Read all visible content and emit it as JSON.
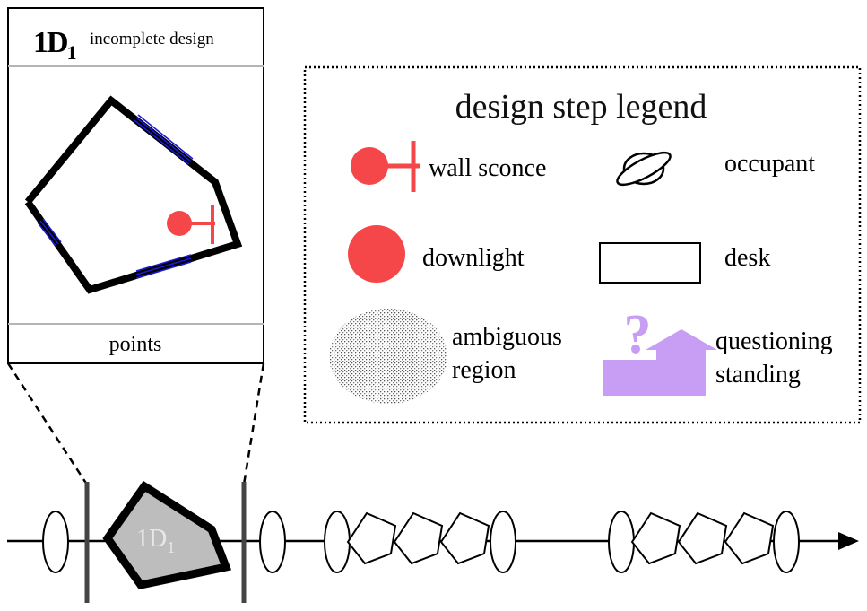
{
  "inset": {
    "title_main": "1D",
    "title_sub": "1",
    "title_caption": "incomplete design",
    "footer_label": "points"
  },
  "legend": {
    "title": "design step legend",
    "items": {
      "wall_sconce": "wall sconce",
      "occupant": "occupant",
      "downlight": "downlight",
      "desk": "desk",
      "ambiguous_region_line1": "ambiguous",
      "ambiguous_region_line2": "region",
      "questioning_line1": "questioning",
      "questioning_line2": "standing",
      "question_mark": "?"
    }
  },
  "timeline": {
    "step_label_main": "1D",
    "step_label_sub": "1"
  },
  "colors": {
    "sconce_red": "#f5474a",
    "window_blue": "#1a1ad6",
    "questioning_purple": "#c79ef4",
    "step_fill_gray": "#bdbdbd",
    "divider_gray": "#b5b5b5"
  }
}
